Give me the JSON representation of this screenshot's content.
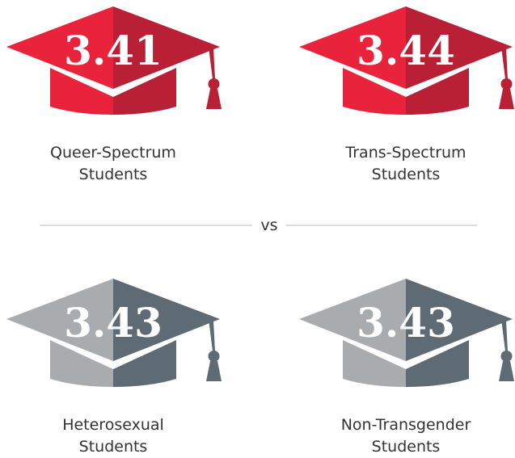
{
  "items": [
    {
      "value": 3.41,
      "label": [
        "Queer-Spectrum",
        "Students"
      ],
      "light": "#e8233b",
      "dark": "#b91f35"
    },
    {
      "value": 3.44,
      "label": [
        "Trans-Spectrum",
        "Students"
      ],
      "light": "#e8233b",
      "dark": "#b91f35"
    },
    {
      "value": 3.43,
      "label": [
        "Heterosexual",
        "Students"
      ],
      "light": "#a9acaf",
      "dark": "#5f6b74"
    },
    {
      "value": 3.43,
      "label": [
        "Non-Transgender",
        "Students"
      ],
      "light": "#a9acaf",
      "dark": "#5f6b74"
    }
  ],
  "divider": "vs"
}
